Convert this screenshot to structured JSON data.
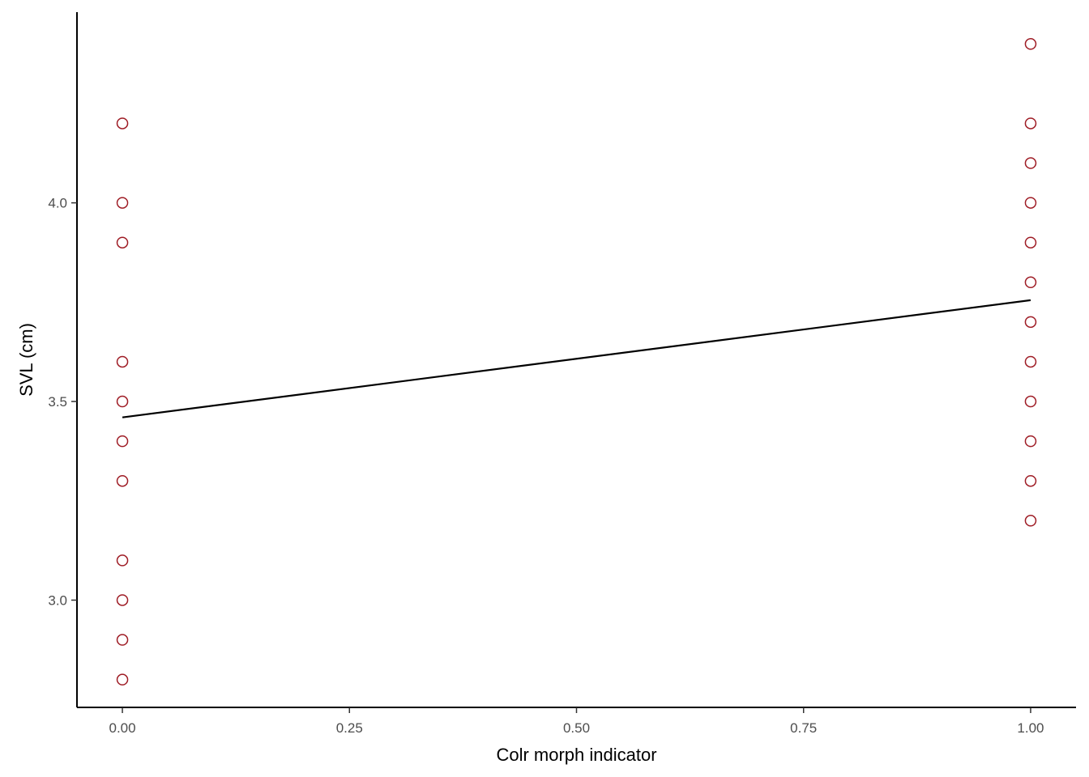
{
  "chart_data": {
    "type": "scatter",
    "title": "",
    "xlabel": "Colr morph indicator",
    "ylabel": "SVL (cm)",
    "xlim": [
      -0.05,
      1.05
    ],
    "ylim": [
      2.73,
      4.48
    ],
    "x_ticks": [
      0,
      0.25,
      0.5,
      0.75,
      1
    ],
    "x_tick_labels": [
      "0.00",
      "0.25",
      "0.50",
      "0.75",
      "1.00"
    ],
    "y_ticks": [
      3.0,
      3.5,
      4.0
    ],
    "y_tick_labels": [
      "3.0",
      "3.5",
      "4.0"
    ],
    "grid": false,
    "point_color": "#9e1b24",
    "line_color": "#000000",
    "points": [
      {
        "x": 0,
        "y": 4.2
      },
      {
        "x": 0,
        "y": 4.0
      },
      {
        "x": 0,
        "y": 3.9
      },
      {
        "x": 0,
        "y": 3.6
      },
      {
        "x": 0,
        "y": 3.5
      },
      {
        "x": 0,
        "y": 3.4
      },
      {
        "x": 0,
        "y": 3.3
      },
      {
        "x": 0,
        "y": 3.1
      },
      {
        "x": 0,
        "y": 3.0
      },
      {
        "x": 0,
        "y": 2.9
      },
      {
        "x": 0,
        "y": 2.8
      },
      {
        "x": 1,
        "y": 4.4
      },
      {
        "x": 1,
        "y": 4.2
      },
      {
        "x": 1,
        "y": 4.1
      },
      {
        "x": 1,
        "y": 4.0
      },
      {
        "x": 1,
        "y": 3.9
      },
      {
        "x": 1,
        "y": 3.8
      },
      {
        "x": 1,
        "y": 3.7
      },
      {
        "x": 1,
        "y": 3.6
      },
      {
        "x": 1,
        "y": 3.5
      },
      {
        "x": 1,
        "y": 3.4
      },
      {
        "x": 1,
        "y": 3.3
      },
      {
        "x": 1,
        "y": 3.2
      }
    ],
    "fit_line": {
      "x": [
        0,
        1
      ],
      "y": [
        3.46,
        3.755
      ]
    }
  }
}
